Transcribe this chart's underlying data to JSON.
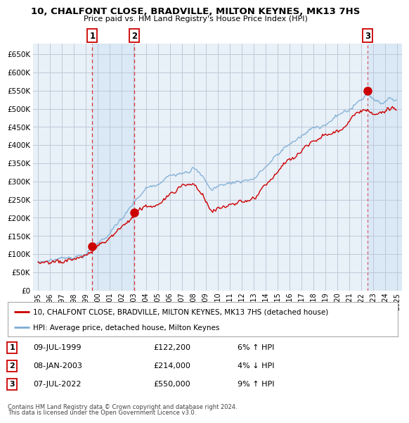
{
  "title_line1": "10, CHALFONT CLOSE, BRADVILLE, MILTON KEYNES, MK13 7HS",
  "title_line2": "Price paid vs. HM Land Registry's House Price Index (HPI)",
  "property_label": "10, CHALFONT CLOSE, BRADVILLE, MILTON KEYNES, MK13 7HS (detached house)",
  "hpi_label": "HPI: Average price, detached house, Milton Keynes",
  "footer_line1": "Contains HM Land Registry data © Crown copyright and database right 2024.",
  "footer_line2": "This data is licensed under the Open Government Licence v3.0.",
  "property_color": "#cc0000",
  "hpi_color": "#7dadd4",
  "plot_bg": "#e8f0f8",
  "fig_bg": "#ffffff",
  "grid_color": "#c0c8d8",
  "highlight_bg": "#d0e4f4",
  "shade_alpha": 0.55,
  "sales": [
    {
      "num": 1,
      "date": "09-JUL-1999",
      "price": 122200,
      "year": 1999.53,
      "label": "1",
      "pct": "6%",
      "dir": "↑"
    },
    {
      "num": 2,
      "date": "08-JAN-2003",
      "price": 214000,
      "year": 2003.03,
      "label": "2",
      "pct": "4%",
      "dir": "↓"
    },
    {
      "num": 3,
      "date": "07-JUL-2022",
      "price": 550000,
      "year": 2022.53,
      "label": "3",
      "pct": "9%",
      "dir": "↑"
    }
  ],
  "ylim": [
    0,
    680000
  ],
  "xlim_start": 1994.6,
  "xlim_end": 2025.4,
  "yticks": [
    0,
    50000,
    100000,
    150000,
    200000,
    250000,
    300000,
    350000,
    400000,
    450000,
    500000,
    550000,
    600000,
    650000
  ],
  "ytick_labels": [
    "£0",
    "£50K",
    "£100K",
    "£150K",
    "£200K",
    "£250K",
    "£300K",
    "£350K",
    "£400K",
    "£450K",
    "£500K",
    "£550K",
    "£600K",
    "£650K"
  ],
  "xtick_years": [
    1995,
    1996,
    1997,
    1998,
    1999,
    2000,
    2001,
    2002,
    2003,
    2004,
    2005,
    2006,
    2007,
    2008,
    2009,
    2010,
    2011,
    2012,
    2013,
    2014,
    2015,
    2016,
    2017,
    2018,
    2019,
    2020,
    2021,
    2022,
    2023,
    2024,
    2025
  ],
  "xtick_labels": [
    "1995",
    "1996",
    "1997",
    "1998",
    "1999",
    "2000",
    "2001",
    "2002",
    "2003",
    "2004",
    "2005",
    "2006",
    "2007",
    "2008",
    "2009",
    "2010",
    "2011",
    "2012",
    "2013",
    "2014",
    "2015",
    "2016",
    "2017",
    "2018",
    "2019",
    "2020",
    "2021",
    "2022",
    "2023",
    "2024",
    "2025"
  ]
}
